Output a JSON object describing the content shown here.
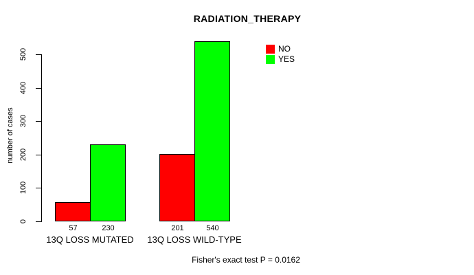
{
  "chart_data": {
    "type": "bar",
    "title": "RADIATION_THERAPY",
    "ylabel": "number of cases",
    "xlabel": "",
    "categories": [
      "13Q LOSS MUTATED",
      "13Q LOSS WILD-TYPE"
    ],
    "series": [
      {
        "name": "NO",
        "color": "#ff0000",
        "values": [
          57,
          201
        ]
      },
      {
        "name": "YES",
        "color": "#00ff00",
        "values": [
          230,
          540
        ]
      }
    ],
    "yticks": [
      0,
      100,
      200,
      300,
      400,
      500
    ],
    "ylim": [
      0,
      540
    ],
    "grid": false,
    "bar_value_labels_shown": true,
    "legend_position": "top-right",
    "annotation": "Fisher's exact test P = 0.0162"
  },
  "colors": {
    "background": "#ffffff",
    "axis": "#000000",
    "text": "#000000",
    "series_no": "#ff0000",
    "series_yes": "#00ff00"
  }
}
